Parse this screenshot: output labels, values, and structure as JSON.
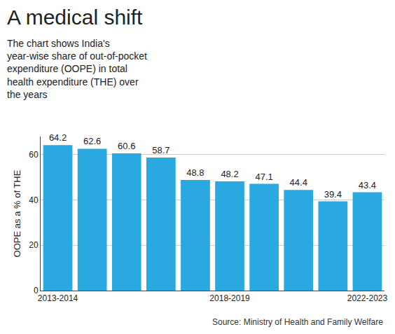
{
  "chart_data": {
    "type": "bar",
    "title": "A medical shift",
    "subtitle": "The chart shows India's year-wise share of out-of-pocket expenditure (OOPE) in total health expenditure (THE) over the years",
    "source": "Source: Ministry of Health and Family Welfare",
    "y_label": "OOPE as a % of THE",
    "categories": [
      "2013-2014",
      null,
      null,
      null,
      null,
      "2018-2019",
      null,
      null,
      null,
      "2022-2023"
    ],
    "values": [
      64.2,
      62.6,
      60.6,
      58.7,
      48.8,
      48.2,
      47.1,
      44.4,
      39.4,
      43.4
    ],
    "color": "#2aa9e0",
    "ylim": [
      0,
      68
    ],
    "yticks": [
      0,
      20,
      40,
      60
    ],
    "grid": true,
    "data_labels": true
  }
}
